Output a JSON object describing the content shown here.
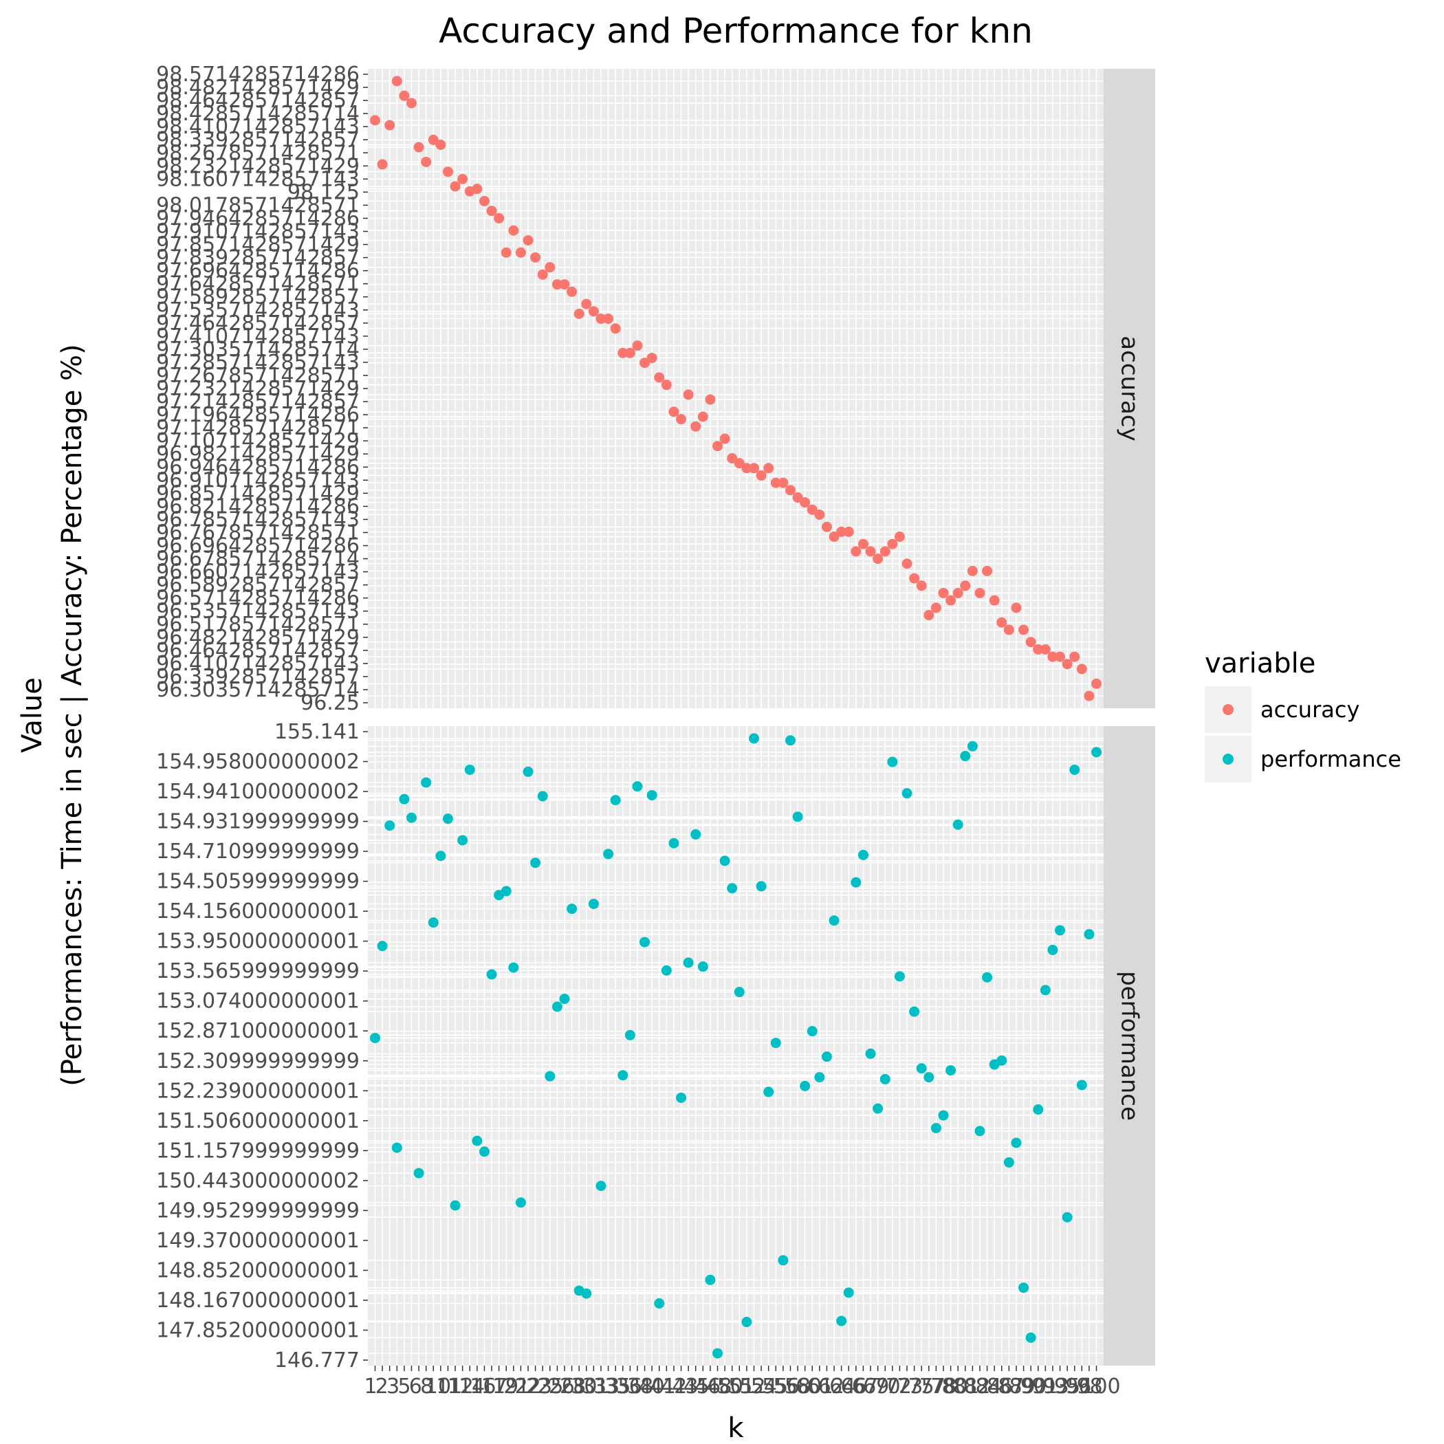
{
  "chart_data": {
    "type": "scatter",
    "title": "Accuracy and Performance for knn",
    "xlabel": "k",
    "ylabel": "Value\n(Performances: Time in sec | Accuracy: Percentage %)",
    "x": [
      1,
      2,
      3,
      4,
      5,
      6,
      7,
      8,
      9,
      10,
      11,
      12,
      13,
      14,
      15,
      16,
      17,
      18,
      19,
      20,
      21,
      22,
      23,
      24,
      25,
      26,
      27,
      28,
      29,
      30,
      31,
      32,
      33,
      34,
      35,
      36,
      37,
      38,
      39,
      40,
      41,
      42,
      43,
      44,
      45,
      46,
      47,
      48,
      49,
      50,
      51,
      52,
      53,
      54,
      55,
      56,
      57,
      58,
      59,
      60,
      61,
      62,
      63,
      64,
      65,
      66,
      67,
      68,
      69,
      70,
      71,
      72,
      73,
      74,
      75,
      76,
      77,
      78,
      79,
      80,
      81,
      82,
      83,
      84,
      85,
      86,
      87,
      88,
      89,
      90,
      91,
      92,
      93,
      94,
      95,
      96,
      97,
      98,
      99,
      100
    ],
    "x_tick_labels": [
      "1",
      "2",
      "3",
      "5",
      "6",
      "8",
      "10",
      "11",
      "12",
      "14",
      "16",
      "17",
      "19",
      "21",
      "22",
      "23",
      "25",
      "26",
      "28",
      "30",
      "31",
      "33",
      "35",
      "36",
      "38",
      "40",
      "41",
      "42",
      "43",
      "45",
      "46",
      "48",
      "50",
      "51",
      "52",
      "54",
      "55",
      "56",
      "58",
      "60",
      "61",
      "62",
      "64",
      "66",
      "67",
      "69",
      "70",
      "72",
      "73",
      "75",
      "77",
      "78",
      "80",
      "81",
      "82",
      "84",
      "86",
      "87",
      "89",
      "90",
      "91",
      "93",
      "95",
      "96",
      "98",
      "100"
    ],
    "grid": true,
    "legend": {
      "title": "variable",
      "placement": "right"
    },
    "facets": [
      {
        "strip_label": "accuracy",
        "series_name": "accuracy",
        "color": "#F8766D",
        "y_tick_labels": [
          "98.5714285714286",
          "98.4821428571429",
          "98.4642857142857",
          "98.4285714285714",
          "98.4107142857143",
          "98.3392857142857",
          "98.2678571428571",
          "98.2321428571429",
          "98.1607142857143",
          "98.125",
          "98.0178571428571",
          "97.9464285714286",
          "97.9107142857143",
          "97.8571428571429",
          "97.8392857142857",
          "97.6964285714286",
          "97.6428571428571",
          "97.5892857142857",
          "97.5357142857143",
          "97.4642857142857",
          "97.4107142857143",
          "97.3035714285714",
          "97.2857142857143",
          "97.2678571428571",
          "97.2321428571429",
          "97.2142857142857",
          "97.1964285714286",
          "97.1428571428571",
          "97.1071428571429",
          "96.9821428571429",
          "96.9464285714286",
          "96.9107142857143",
          "96.8571428571429",
          "96.8214285714286",
          "96.7857142857143",
          "96.7678571428571",
          "96.6964285714286",
          "96.6785714285714",
          "96.6607142857143",
          "96.5892857142857",
          "96.5714285714286",
          "96.5357142857143",
          "96.5178571428571",
          "96.4821428571429",
          "96.4642857142857",
          "96.4107142857143",
          "96.3392857142857",
          "96.3035714285714",
          "96.25"
        ],
        "y": [
          98.41,
          98.23,
          98.39,
          98.57,
          98.51,
          98.48,
          98.3,
          98.24,
          98.33,
          98.31,
          98.2,
          98.14,
          98.17,
          98.12,
          98.13,
          98.08,
          98.04,
          98.01,
          97.87,
          97.96,
          97.87,
          97.92,
          97.85,
          97.78,
          97.81,
          97.74,
          97.74,
          97.71,
          97.62,
          97.66,
          97.63,
          97.6,
          97.6,
          97.56,
          97.46,
          97.46,
          97.49,
          97.42,
          97.44,
          97.36,
          97.33,
          97.22,
          97.19,
          97.29,
          97.16,
          97.2,
          97.27,
          97.08,
          97.11,
          97.03,
          97.01,
          96.99,
          96.99,
          96.96,
          96.99,
          96.93,
          96.93,
          96.9,
          96.87,
          96.85,
          96.82,
          96.8,
          96.75,
          96.71,
          96.73,
          96.73,
          96.65,
          96.68,
          96.65,
          96.62,
          96.65,
          96.68,
          96.71,
          96.6,
          96.54,
          96.51,
          96.39,
          96.42,
          96.48,
          96.45,
          96.48,
          96.51,
          96.57,
          96.48,
          96.57,
          96.45,
          96.36,
          96.33,
          96.42,
          96.33,
          96.28,
          96.25,
          96.25,
          96.22,
          96.22,
          96.19,
          96.22,
          96.17,
          96.06,
          96.11
        ]
      },
      {
        "strip_label": "performance",
        "series_name": "performance",
        "color": "#00BFC4",
        "y_tick_labels": [
          "155.141",
          "154.958000000002",
          "154.941000000002",
          "154.931999999999",
          "154.710999999999",
          "154.505999999999",
          "154.156000000001",
          "153.950000000001",
          "153.565999999999",
          "153.074000000001",
          "152.871000000001",
          "152.309999999999",
          "152.239000000001",
          "151.506000000001",
          "151.157999999999",
          "150.443000000002",
          "149.952999999999",
          "149.370000000001",
          "148.852000000001",
          "148.167000000001",
          "147.852000000001",
          "146.777"
        ],
        "y": [
          152.18,
          153.12,
          154.35,
          151.06,
          154.62,
          154.43,
          150.8,
          154.79,
          153.36,
          154.04,
          154.42,
          150.47,
          154.2,
          154.92,
          151.13,
          151.02,
          152.83,
          153.64,
          153.68,
          152.9,
          150.5,
          154.9,
          153.97,
          154.65,
          151.79,
          152.5,
          152.58,
          153.5,
          149.6,
          149.57,
          153.55,
          150.67,
          154.06,
          154.61,
          151.8,
          152.21,
          154.75,
          153.16,
          154.66,
          149.47,
          152.87,
          154.17,
          151.57,
          152.95,
          154.26,
          152.91,
          149.71,
          148.96,
          153.99,
          153.71,
          152.65,
          149.28,
          155.24,
          153.73,
          151.63,
          152.13,
          149.91,
          155.22,
          154.44,
          151.69,
          152.25,
          151.78,
          151.99,
          153.38,
          149.29,
          149.58,
          153.77,
          154.05,
          152.02,
          151.46,
          151.76,
          155.0,
          152.81,
          154.68,
          152.45,
          151.87,
          151.78,
          151.26,
          151.39,
          151.85,
          154.36,
          155.06,
          155.16,
          151.23,
          152.8,
          151.91,
          151.95,
          150.91,
          151.11,
          149.63,
          149.12,
          151.45,
          152.67,
          153.08,
          153.28,
          150.35,
          154.92,
          151.7,
          153.24,
          155.1
        ]
      }
    ]
  }
}
